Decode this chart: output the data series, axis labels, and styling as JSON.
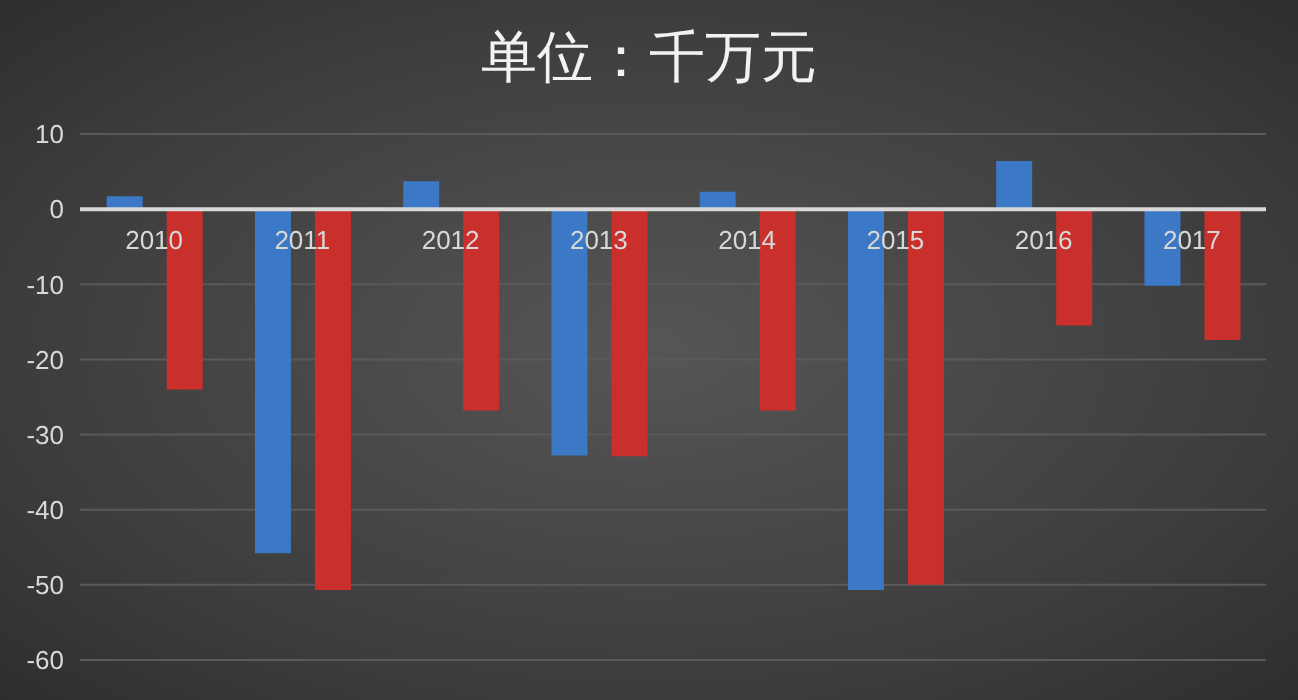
{
  "chart_data": {
    "type": "bar",
    "title": "单位：千万元",
    "categories": [
      "2010",
      "2011",
      "2012",
      "2013",
      "2014",
      "2015",
      "2016",
      "2017"
    ],
    "series": [
      {
        "color": "#3b78c6",
        "values": [
          1.7,
          -45.8,
          3.7,
          -32.8,
          2.3,
          -50.7,
          6.4,
          -10.2
        ]
      },
      {
        "color": "#c9302c",
        "values": [
          -24,
          -50.7,
          -26.8,
          -32.9,
          -26.8,
          -50,
          -15.5,
          -17.4
        ]
      }
    ],
    "ylim": [
      -60,
      10
    ],
    "yticks": [
      -60,
      -50,
      -40,
      -30,
      -20,
      -10,
      0,
      10
    ],
    "grid": "y",
    "legend": false
  }
}
